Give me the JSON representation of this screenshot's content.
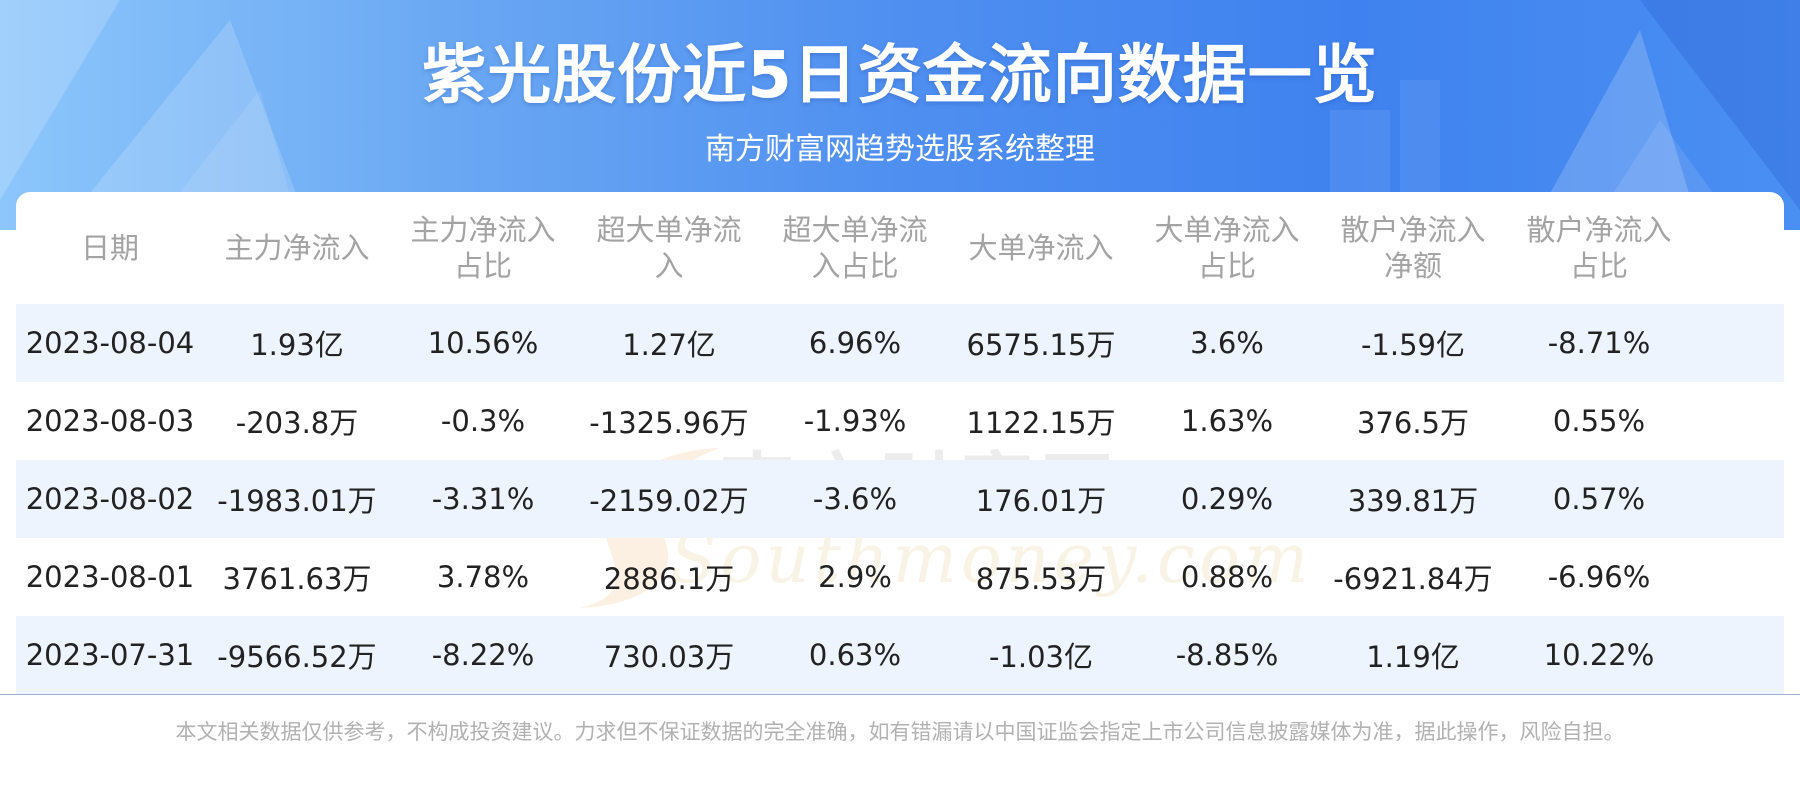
{
  "header": {
    "title": "紫光股份近5日资金流向数据一览",
    "subtitle": "南方财富网趋势选股系统整理"
  },
  "table": {
    "columns": [
      [
        "日期"
      ],
      [
        "主力净流入"
      ],
      [
        "主力净流入",
        "占比"
      ],
      [
        "超大单净流",
        "入"
      ],
      [
        "超大单净流",
        "入占比"
      ],
      [
        "大单净流入"
      ],
      [
        "大单净流入",
        "占比"
      ],
      [
        "散户净流入",
        "净额"
      ],
      [
        "散户净流入",
        "占比"
      ]
    ],
    "rows": [
      [
        "2023-08-04",
        "1.93亿",
        "10.56%",
        "1.27亿",
        "6.96%",
        "6575.15万",
        "3.6%",
        "-1.59亿",
        "-8.71%"
      ],
      [
        "2023-08-03",
        "-203.8万",
        "-0.3%",
        "-1325.96万",
        "-1.93%",
        "1122.15万",
        "1.63%",
        "376.5万",
        "0.55%"
      ],
      [
        "2023-08-02",
        "-1983.01万",
        "-3.31%",
        "-2159.02万",
        "-3.6%",
        "176.01万",
        "0.29%",
        "339.81万",
        "0.57%"
      ],
      [
        "2023-08-01",
        "3761.63万",
        "3.78%",
        "2886.1万",
        "2.9%",
        "875.53万",
        "0.88%",
        "-6921.84万",
        "-6.96%"
      ],
      [
        "2023-07-31",
        "-9566.52万",
        "-8.22%",
        "730.03万",
        "0.63%",
        "-1.03亿",
        "-8.85%",
        "1.19亿",
        "10.22%"
      ]
    ]
  },
  "watermark": {
    "cn": "南方财富网",
    "en": "Southmoney.com"
  },
  "footer": {
    "disclaimer": "本文相关数据仅供参考，不构成投资建议。力求但不保证数据的完全准确，如有错漏请以中国证监会指定上市公司信息披露媒体为准，据此操作，风险自担。"
  },
  "colors": {
    "banner_start": "#8cc6fb",
    "banner_end": "#3f82ef",
    "row_shade": "#eef4fd",
    "header_text": "#a3a3a3",
    "body_text": "#222222"
  }
}
